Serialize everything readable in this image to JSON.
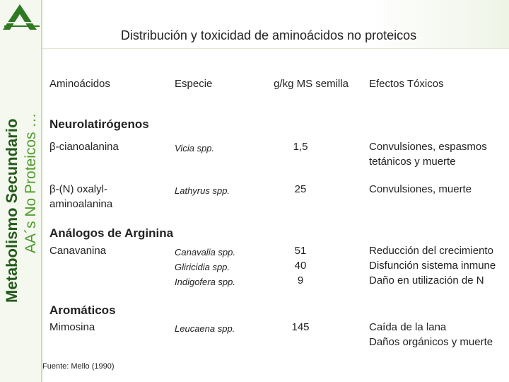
{
  "sidebar": {
    "title": "Metabolismo Secundario",
    "subtitle": "AA´s No Proteicos …"
  },
  "title": "Distribución y toxicidad de aminoácidos no proteicos",
  "table": {
    "headers": [
      "Aminoácidos",
      "Especie",
      "g/kg MS semilla",
      "Efectos Tóxicos"
    ],
    "groups": [
      {
        "name": "Neurolatirógenos",
        "rows": [
          {
            "aminoacid": "β-cianoalanina",
            "species": [
              "Vicia spp."
            ],
            "amounts": [
              "1,5"
            ],
            "effects": [
              "Convulsiones,  espasmos tetánicos y muerte"
            ]
          },
          {
            "aminoacid": "β-(N) oxalyl-aminoalanina",
            "species": [
              "Lathyrus spp."
            ],
            "amounts": [
              "25"
            ],
            "effects": [
              "Convulsiones, muerte"
            ]
          }
        ]
      },
      {
        "name": "Análogos de Arginina",
        "rows": [
          {
            "aminoacid": "Canavanina",
            "species": [
              "Canavalia spp.",
              "Gliricidia spp.",
              "Indigofera spp."
            ],
            "amounts": [
              "51",
              "40",
              "9"
            ],
            "effects": [
              "Reducción del crecimiento",
              "Disfunción sistema inmune",
              "Daño en utilización de N"
            ]
          }
        ]
      },
      {
        "name": "Aromáticos",
        "rows": [
          {
            "aminoacid": "Mimosina",
            "species": [
              "Leucaena spp."
            ],
            "amounts": [
              "145"
            ],
            "effects": [
              "Caída de la lana",
              "Daños orgánicos y muerte"
            ]
          }
        ]
      }
    ]
  },
  "source": "Fuente:  Mello (1990)"
}
